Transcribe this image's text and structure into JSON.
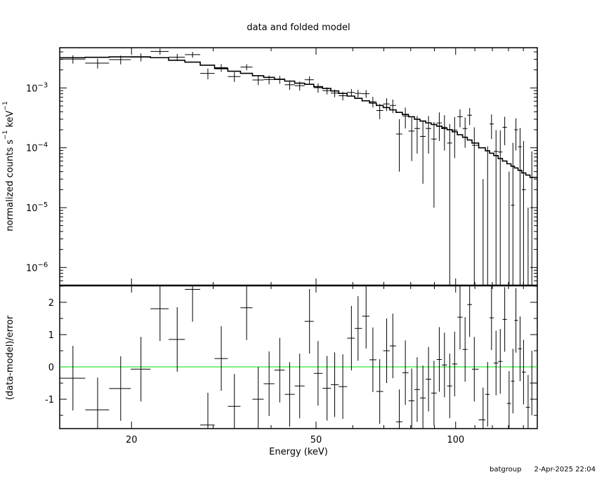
{
  "chart_data": [
    {
      "type": "scatter",
      "title": "data and folded model",
      "xlabel": "",
      "ylabel": "normalized counts s^-1 keV^-1",
      "ylabel_parts": {
        "main": "normalized counts s",
        "sup1": "−1",
        "mid": " keV",
        "sup2": "−1"
      },
      "xscale": "log",
      "yscale": "log",
      "xlim": [
        14,
        150
      ],
      "ylim": [
        5e-07,
        0.0047
      ],
      "xticks": [
        20,
        50,
        100
      ],
      "yticks": [
        {
          "value": 0.001,
          "base": "10",
          "exp": "−3"
        },
        {
          "value": 0.0001,
          "base": "10",
          "exp": "−4"
        },
        {
          "value": 1e-05,
          "base": "10",
          "exp": "−5"
        },
        {
          "value": 1e-06,
          "base": "10",
          "exp": "−6"
        }
      ],
      "grid": false,
      "series": [
        {
          "kind": "data-with-errors",
          "color": "#000000",
          "x": [
            14.95,
            16.9,
            18.95,
            20.96,
            23.04,
            25.09,
            27.08,
            29.22,
            31.23,
            33.33,
            35.42,
            37.52,
            39.6,
            41.75,
            43.86,
            46.1,
            48.4,
            50.5,
            52.8,
            54.85,
            57.1,
            59.6,
            61.6,
            64.1,
            66.3,
            68.6,
            71.0,
            73.2,
            75.6,
            77.9,
            80.4,
            82.6,
            85.0,
            87.4,
            89.8,
            92.2,
            94.6,
            97.1,
            99.5,
            102.2,
            104.8,
            107.2,
            109.7,
            114.6,
            117.2,
            119.5,
            122.2,
            124.8,
            127.6,
            130.4,
            132.9,
            134.9,
            137.7,
            140.1,
            143.3,
            146.0
          ],
          "y": [
            0.00303,
            0.0026,
            0.00297,
            0.00327,
            0.00406,
            0.00327,
            0.0036,
            0.00175,
            0.00218,
            0.00155,
            0.00223,
            0.00136,
            0.00138,
            0.00138,
            0.00113,
            0.00109,
            0.00137,
            0.00101,
            0.0009,
            0.00082,
            0.00074,
            0.00084,
            0.00081,
            0.0008,
            0.00059,
            0.00042,
            0.00054,
            0.00051,
            0.00017,
            0.00034,
            0.00019,
            0.00021,
            0.000155,
            0.00021,
            0.00014,
            0.00026,
            0.00022,
            0.00012,
            0.000197,
            0.00033,
            0.00021,
            0.00035,
            0.00011,
            -8e-05,
            -4.5e-06,
            0.00025,
            8.7e-05,
            8.5e-05,
            0.00022,
            -7e-05,
            1.1e-05,
            0.0002,
            0.000104,
            2e-05,
            -0.0001,
            -2.3e-05
          ],
          "yerr": [
            0.00048,
            0.00049,
            0.0005,
            0.0005,
            0.00048,
            0.00044,
            0.0004,
            0.00036,
            0.00032,
            0.00029,
            0.00026,
            0.00024,
            0.00023,
            0.00021,
            0.0002,
            0.00019,
            0.00019,
            0.00018,
            0.00012,
            0.00012,
            0.00012,
            0.00012,
            0.00012,
            0.00012,
            0.00012,
            0.00012,
            0.00013,
            0.00013,
            0.00013,
            0.00013,
            0.00013,
            0.00013,
            0.00013,
            0.00013,
            0.00013,
            0.00013,
            0.00013,
            0.00013,
            0.00013,
            0.00011,
            0.00011,
            0.00011,
            0.00011,
            0.00011,
            0.00011,
            0.00011,
            0.00011,
            0.00011,
            0.00011,
            0.00011,
            0.00011,
            0.00011,
            0.00011,
            0.00011,
            0.00011,
            0.00011
          ]
        },
        {
          "kind": "folded-model-step",
          "color": "#000000",
          "y": [
            0.0032,
            0.00325,
            0.0033,
            0.0033,
            0.0032,
            0.0029,
            0.0027,
            0.0024,
            0.0021,
            0.0019,
            0.00175,
            0.0016,
            0.0015,
            0.0014,
            0.0013,
            0.0012,
            0.00115,
            0.00105,
            0.00098,
            0.00089,
            0.00081,
            0.00073,
            0.00067,
            0.00061,
            0.00056,
            0.00051,
            0.00047,
            0.00043,
            0.00039,
            0.00036,
            0.00033,
            0.0003,
            0.00028,
            0.00026,
            0.000245,
            0.00023,
            0.00021,
            0.0002,
            0.000185,
            0.000165,
            0.00015,
            0.000135,
            0.00012,
            0.0001,
            8.9e-05,
            8.1e-05,
            7.4e-05,
            6.6e-05,
            6e-05,
            5.4e-05,
            4.9e-05,
            4.6e-05,
            4.2e-05,
            3.8e-05,
            3.5e-05,
            3.2e-05
          ]
        }
      ]
    },
    {
      "type": "scatter",
      "title": "",
      "xlabel": "Energy (keV)",
      "ylabel": "(data-model)/error",
      "xscale": "log",
      "xlim": [
        14,
        150
      ],
      "ylim": [
        -1.91,
        2.52
      ],
      "xticks": [
        20,
        50,
        100
      ],
      "yticks": [
        2,
        1,
        0,
        -1
      ],
      "grid": false,
      "reference_line": {
        "y": 0,
        "color": "#00e000"
      },
      "series": [
        {
          "kind": "residuals",
          "color": "#000000",
          "y": [
            -0.35,
            -1.33,
            -0.67,
            -0.07,
            1.8,
            0.85,
            2.4,
            -1.8,
            0.26,
            -1.22,
            1.83,
            -1.0,
            -0.52,
            -0.1,
            -0.85,
            -0.59,
            1.41,
            -0.2,
            -0.66,
            -0.55,
            -0.61,
            0.89,
            1.19,
            1.57,
            0.22,
            -0.76,
            0.5,
            0.65,
            -1.7,
            -0.18,
            -1.05,
            -0.7,
            -0.96,
            -0.38,
            -0.81,
            0.23,
            0.06,
            -0.59,
            0.09,
            1.54,
            0.54,
            1.93,
            -0.07,
            -1.64,
            -0.85,
            1.52,
            0.12,
            0.17,
            1.47,
            -1.13,
            -0.44,
            1.44,
            0.56,
            -0.16,
            -1.25,
            -0.5
          ],
          "yerr": 1
        }
      ]
    }
  ],
  "footer": {
    "user": "batgroup",
    "timestamp": "2-Apr-2025 22:04"
  }
}
